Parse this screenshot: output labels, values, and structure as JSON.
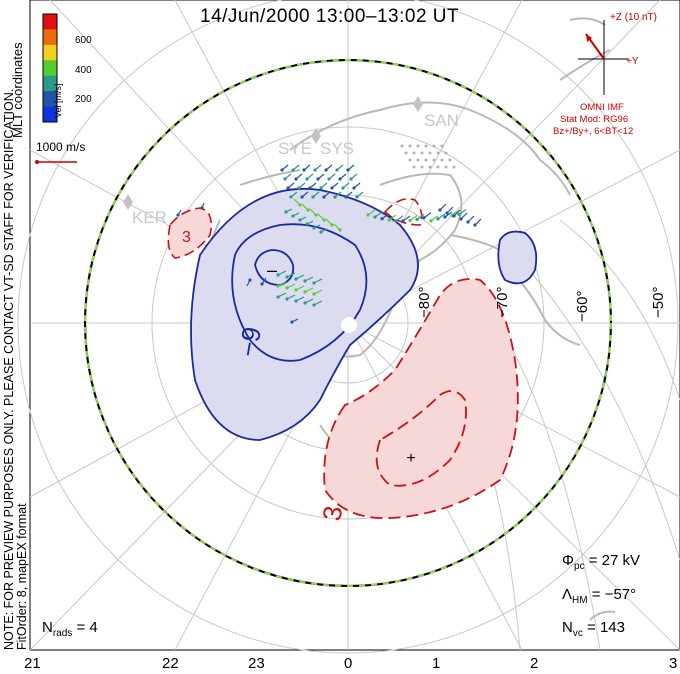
{
  "title": "14/Jun/2000 13:00–13:02 UT",
  "colorbar": {
    "label": "Vel [m/s]",
    "ticks": [
      "600",
      "400",
      "200"
    ],
    "colors": [
      "#dd1111",
      "#ee6a10",
      "#f0d020",
      "#55cc33",
      "#2a9a8a",
      "#2255aa",
      "#1133dd"
    ]
  },
  "mlt_label": "MLT coordinates",
  "ref_vector": {
    "label": "1000 m/s",
    "color": "#cc0000"
  },
  "imf": {
    "z_label": "+Z (10 nT)",
    "y_label": "+Y",
    "source": "OMNI IMF",
    "model": "Stat Mod: RG96",
    "condition": "Bz+/By+, 6<BT<12",
    "color": "#cc0000"
  },
  "side_notes": {
    "line1": "NOTE: FOR PREVIEW PURPOSES ONLY. PLEASE CONTACT VT-SD STAFF FOR VERIFICATION.",
    "line2": "FitOrder: 8, mapEX format"
  },
  "stations": [
    {
      "name": "SAN"
    },
    {
      "name": "SYS"
    },
    {
      "name": "SYE"
    },
    {
      "name": "KER"
    }
  ],
  "lon_labels": [
    "−80°",
    "−70°",
    "−60°",
    "−50°"
  ],
  "contours": {
    "neg_label": "−9",
    "pos_label": "3",
    "neg_color": "#1a2aa0",
    "pos_color": "#cc1111",
    "neg_fill": "#dcdcf0",
    "pos_fill": "#f6d8d8",
    "min_marker": "–",
    "max_marker": "+"
  },
  "stats": {
    "phi_pc_label": "Φ",
    "phi_pc_sub": "pc",
    "phi_pc_value": "= 27 kV",
    "lambda_hm_label": "Λ",
    "lambda_hm_sub": "HM",
    "lambda_hm_value": "= −57°",
    "nvc_label": "N",
    "nvc_sub": "vc",
    "nvc_value": "= 143",
    "nrads_label": "N",
    "nrads_sub": "rads",
    "nrads_value": "= 4"
  },
  "mlt_axis": [
    "21",
    "22",
    "23",
    "0",
    "1",
    "2",
    "3"
  ]
}
